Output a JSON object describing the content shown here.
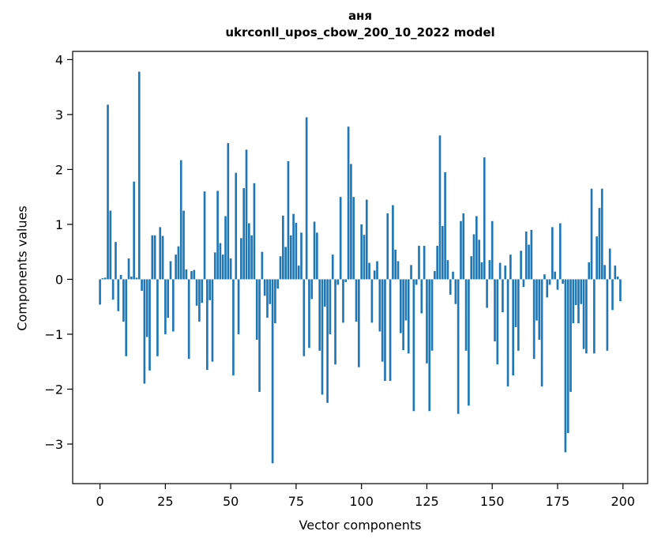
{
  "figure": {
    "title_line1": "аня",
    "title_line2": "ukrconll_upos_cbow_200_10_2022 model",
    "background_color": "#ffffff",
    "spine_color": "#000000"
  },
  "chart_data": {
    "type": "bar",
    "title": "аня ukrconll_upos_cbow_200_10_2022 model",
    "xlabel": "Vector components",
    "ylabel": "Components values",
    "legend": "none",
    "grid": false,
    "bar_color": "#1f77b4",
    "n_components": 200,
    "x_ticks": [
      0,
      25,
      50,
      75,
      100,
      125,
      150,
      175,
      200
    ],
    "y_ticks": [
      -3,
      -2,
      -1,
      0,
      1,
      2,
      3,
      4
    ],
    "xlim": [
      -10.45,
      209.45
    ],
    "ylim": [
      -3.72,
      4.15
    ],
    "values": [
      -0.46,
      0.02,
      0.03,
      3.18,
      1.25,
      -0.37,
      0.68,
      -0.58,
      0.08,
      -0.77,
      -1.4,
      0.38,
      0.05,
      1.78,
      0.03,
      3.78,
      -0.21,
      -1.9,
      -1.05,
      -1.66,
      0.8,
      0.8,
      -1.4,
      0.95,
      0.79,
      -1.0,
      -0.7,
      0.33,
      -0.95,
      0.45,
      0.6,
      2.17,
      1.25,
      0.18,
      -1.45,
      0.15,
      0.17,
      -0.48,
      -0.77,
      -0.43,
      1.6,
      -1.65,
      -0.38,
      -1.5,
      0.49,
      1.61,
      0.66,
      0.45,
      1.15,
      2.48,
      0.38,
      -1.75,
      1.94,
      -1.0,
      0.75,
      1.66,
      2.36,
      1.02,
      0.8,
      1.75,
      -1.1,
      -2.05,
      0.5,
      -0.3,
      -0.7,
      -0.45,
      -3.35,
      -0.8,
      -0.17,
      0.42,
      1.16,
      0.59,
      2.15,
      0.8,
      1.19,
      1.03,
      0.25,
      0.85,
      -1.4,
      2.95,
      -1.25,
      -0.36,
      1.05,
      0.85,
      -1.3,
      -2.1,
      -0.5,
      -2.25,
      -1.0,
      0.45,
      -1.55,
      -0.1,
      1.5,
      -0.79,
      -0.05,
      2.78,
      2.1,
      1.5,
      -0.77,
      -1.6,
      1.0,
      0.81,
      1.45,
      0.3,
      -0.79,
      0.16,
      0.33,
      -0.95,
      -1.5,
      -1.85,
      1.2,
      -1.85,
      1.35,
      0.54,
      0.33,
      -0.98,
      -1.29,
      -0.75,
      -1.35,
      0.26,
      -2.4,
      -0.1,
      0.61,
      -0.62,
      0.61,
      -1.53,
      -2.4,
      -1.3,
      0.15,
      0.61,
      2.62,
      0.97,
      1.95,
      0.35,
      -0.28,
      0.14,
      -0.45,
      -2.45,
      1.06,
      1.2,
      -1.3,
      -2.3,
      0.42,
      0.82,
      1.15,
      0.72,
      0.31,
      2.22,
      -0.52,
      0.35,
      1.06,
      -1.13,
      -1.55,
      0.3,
      -0.6,
      0.25,
      -1.95,
      0.45,
      -1.75,
      -0.87,
      -1.3,
      0.52,
      -0.14,
      0.87,
      0.63,
      0.9,
      -1.45,
      -0.75,
      -1.1,
      -1.95,
      0.09,
      -0.33,
      -0.1,
      0.95,
      0.14,
      -0.19,
      1.02,
      -0.08,
      -3.15,
      -2.8,
      -2.05,
      -0.8,
      -0.47,
      -0.8,
      -0.45,
      -1.27,
      -1.35,
      0.31,
      1.65,
      -1.35,
      0.78,
      1.3,
      1.65,
      0.26,
      -1.3,
      0.56,
      -0.56,
      0.25,
      0.05,
      -0.4
    ]
  }
}
